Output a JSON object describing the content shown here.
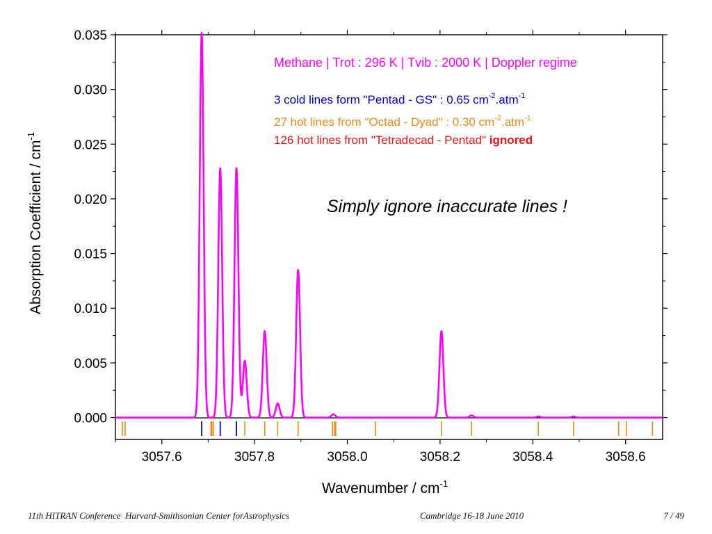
{
  "chart_data": {
    "type": "line",
    "xlabel": "Wavenumber / cm",
    "xlabel_sup": "-1",
    "ylabel": "Absorption Coefficient / cm",
    "ylabel_sup": "-1",
    "xlim": [
      3057.5,
      3058.68
    ],
    "ylim": [
      -0.002,
      0.035
    ],
    "x_ticks": [
      3057.6,
      3057.8,
      3058.0,
      3058.2,
      3058.4,
      3058.6
    ],
    "x_tick_labels": [
      "3057.6",
      "3057.8",
      "3058.0",
      "3058.2",
      "3058.4",
      "3058.6"
    ],
    "y_ticks": [
      0.0,
      0.005,
      0.01,
      0.015,
      0.02,
      0.025,
      0.03,
      0.035
    ],
    "y_tick_labels": [
      "0.000",
      "0.005",
      "0.010",
      "0.015",
      "0.020",
      "0.025",
      "0.030",
      "0.035"
    ],
    "series": [
      {
        "color": "#ff00ff",
        "peaks": [
          {
            "x": 3057.686,
            "y": 0.0352
          },
          {
            "x": 3057.726,
            "y": 0.0228
          },
          {
            "x": 3057.761,
            "y": 0.0228
          },
          {
            "x": 3057.779,
            "y": 0.0052
          },
          {
            "x": 3057.822,
            "y": 0.0079
          },
          {
            "x": 3057.85,
            "y": 0.0013
          },
          {
            "x": 3057.894,
            "y": 0.0135
          },
          {
            "x": 3057.97,
            "y": 0.0003
          },
          {
            "x": 3058.203,
            "y": 0.0079
          },
          {
            "x": 3058.268,
            "y": 0.0002
          },
          {
            "x": 3058.412,
            "y": 0.0001
          },
          {
            "x": 3058.488,
            "y": 0.0001
          }
        ]
      }
    ],
    "line_markers": {
      "cold": {
        "color": "#0000dd",
        "x": [
          3057.686,
          3057.726,
          3057.761
        ]
      },
      "hot": {
        "color": "#ee8a10",
        "x": [
          3057.515,
          3057.521,
          3057.706,
          3057.708,
          3057.711,
          3057.779,
          3057.822,
          3057.85,
          3057.894,
          3057.968,
          3057.972,
          3057.975,
          3058.061,
          3058.203,
          3058.268,
          3058.412,
          3058.488,
          3058.585,
          3058.602,
          3058.658
        ]
      }
    },
    "annotations": [
      {
        "id": "methane",
        "text": "Methane | Trot : 296 K | Tvib : 2000 K | Doppler regime",
        "color": "#ff00ff"
      },
      {
        "id": "cold",
        "text": "3 cold lines form \"Pentad - GS\" : 0.65 cm",
        "sup1": "-2",
        "mid": ".atm",
        "sup2": "-1",
        "color": "#0000cc"
      },
      {
        "id": "hot",
        "text": "27 hot lines from \"Octad - Dyad\" : 0.30 cm",
        "sup1": "-2",
        "mid": ".atm",
        "sup2": "-1",
        "color": "#ee8a10"
      },
      {
        "id": "ignored",
        "text": "126 hot lines from \"Tetradecad - Pentad\" ",
        "bold": "ignored",
        "color": "#ee1111"
      },
      {
        "id": "simply",
        "text": "Simply ignore inaccurate lines !",
        "color": "#000000"
      }
    ]
  },
  "footer": {
    "left": "11th HITRAN Conference  Harvard-Smithsonian Center forAstrophysics",
    "center": "Cambridge 16-18 June 2010",
    "right": "7 / 49"
  }
}
